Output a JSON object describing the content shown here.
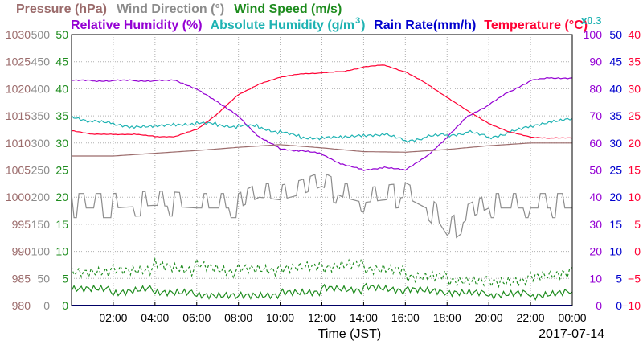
{
  "chart_data": {
    "type": "line",
    "date": "2017-07-14",
    "xlabel": "Time (JST)",
    "x_ticks": [
      "02:00",
      "04:00",
      "06:00",
      "08:00",
      "10:00",
      "12:00",
      "14:00",
      "16:00",
      "18:00",
      "20:00",
      "22:00",
      "00:00"
    ],
    "legend": {
      "row1": [
        {
          "text": "Pressure (hPa)",
          "color": "#9b6b6b"
        },
        {
          "text": "Wind Direction (°)",
          "color": "#8c8c8c"
        },
        {
          "text": "Wind Speed (m/s)",
          "color": "#1e8c1e"
        }
      ],
      "row2": [
        {
          "text": "Relative Humidity (%)",
          "color": "#9400d3"
        },
        {
          "text": "Absolute Humidity (g/m",
          "color": "#1fb3b3"
        },
        {
          "text": "Rain Rate(mm/h)",
          "color": "#0000cd"
        },
        {
          "text": "Temperature (°C)",
          "color": "#ff0033"
        }
      ],
      "abs_hum_superscript": "3",
      "abs_hum_close": ")",
      "abs_hum_scale": "x0.3"
    },
    "axes": {
      "pressure": {
        "color": "#9b6b6b",
        "ticks": [
          "1030",
          "1025",
          "1020",
          "1015",
          "1010",
          "1005",
          "1000",
          "995",
          "990",
          "985",
          "980"
        ]
      },
      "wind_dir": {
        "color": "#8c8c8c",
        "ticks": [
          "500",
          "450",
          "400",
          "350",
          "300",
          "250",
          "200",
          "150",
          "100",
          "50",
          "0"
        ]
      },
      "wind_speed": {
        "color": "#1e8c1e",
        "ticks": [
          "50",
          "45",
          "40",
          "35",
          "30",
          "25",
          "20",
          "15",
          "10",
          "5",
          "0"
        ]
      },
      "humidity": {
        "color": "#9400d3",
        "ticks": [
          "100",
          "90",
          "80",
          "70",
          "60",
          "50",
          "40",
          "30",
          "20",
          "10",
          "0"
        ]
      },
      "rain": {
        "color": "#0000cd",
        "ticks": [
          "50",
          "45",
          "40",
          "35",
          "30",
          "25",
          "20",
          "15",
          "10",
          "5",
          "0"
        ]
      },
      "temperature": {
        "color": "#ff0033",
        "ticks": [
          "40",
          "35",
          "30",
          "25",
          "20",
          "15",
          "10",
          "5",
          "0",
          "−5",
          "−10"
        ]
      }
    },
    "x_range_hours": [
      0,
      24
    ],
    "series": [
      {
        "name": "Temperature (°C)",
        "key": "temperature",
        "color": "#ff0033",
        "unit_range": [
          -10,
          40
        ],
        "x": [
          0,
          1,
          2,
          3,
          4,
          5,
          6,
          7,
          8,
          9,
          10,
          11,
          12,
          13,
          14,
          15,
          16,
          17,
          18,
          19,
          20,
          21,
          22,
          23,
          24
        ],
        "values": [
          22.3,
          21.6,
          21.6,
          21.6,
          21.2,
          21.2,
          22.5,
          25.4,
          28.9,
          30.9,
          32.1,
          32.8,
          32.9,
          33.2,
          34.0,
          34.4,
          33.1,
          31.0,
          28.4,
          25.9,
          23.6,
          22.0,
          21.1,
          20.9,
          20.9
        ]
      },
      {
        "name": "Relative Humidity (%)",
        "key": "humidity",
        "color": "#9400d3",
        "unit_range": [
          0,
          100
        ],
        "x": [
          0,
          1,
          2,
          3,
          4,
          5,
          6,
          7,
          8,
          9,
          10,
          11,
          12,
          13,
          14,
          15,
          16,
          17,
          18,
          19,
          20,
          21,
          22,
          23,
          24
        ],
        "values": [
          83,
          83,
          83,
          83,
          83,
          83,
          80,
          75,
          70,
          62,
          58,
          57,
          56,
          52,
          50,
          51,
          50,
          55,
          62,
          70,
          74,
          79,
          83,
          84,
          84
        ]
      },
      {
        "name": "Absolute Humidity (g/m3)",
        "key": "abs_humidity",
        "color": "#1fb3b3",
        "unit_range": [
          0,
          100
        ],
        "x": [
          0,
          1,
          2,
          3,
          4,
          5,
          6,
          7,
          8,
          9,
          10,
          11,
          12,
          13,
          14,
          15,
          16,
          17,
          18,
          19,
          20,
          21,
          22,
          23,
          24
        ],
        "values": [
          70,
          68,
          67,
          66,
          66,
          67,
          67,
          67,
          66,
          66,
          64,
          62,
          62,
          62,
          63,
          63,
          61,
          62,
          63,
          64,
          62,
          64,
          66,
          68,
          69
        ]
      },
      {
        "name": "Pressure (hPa)",
        "key": "pressure",
        "color": "#9b6b6b",
        "unit_range": [
          980,
          1030
        ],
        "x": [
          0,
          2,
          4,
          6,
          8,
          10,
          12,
          14,
          16,
          18,
          20,
          22,
          24
        ],
        "values": [
          1007.6,
          1007.6,
          1008.1,
          1008.6,
          1009.2,
          1009.7,
          1009.1,
          1008.4,
          1008.3,
          1008.8,
          1009.5,
          1010.0,
          1010.0
        ]
      },
      {
        "name": "Wind Direction (°)",
        "key": "wind_dir",
        "color": "#8c8c8c",
        "unit_range": [
          0,
          500
        ],
        "x": [
          0,
          2,
          4,
          6,
          8,
          9,
          10,
          11,
          12,
          13,
          14,
          15,
          16,
          17,
          17.5,
          18,
          19,
          20,
          22,
          24
        ],
        "values": [
          180,
          180,
          185,
          180,
          180,
          200,
          195,
          205,
          220,
          200,
          190,
          195,
          200,
          180,
          160,
          130,
          160,
          180,
          180,
          180
        ]
      },
      {
        "name": "Wind Speed (m/s)",
        "key": "wind_speed",
        "color": "#1e8c1e",
        "unit_range": [
          0,
          50
        ],
        "style": "dashed",
        "note": "gust",
        "x": [
          0,
          2,
          4,
          6,
          8,
          10,
          12,
          14,
          16,
          18,
          20,
          22,
          24
        ],
        "values": [
          7,
          7,
          7.5,
          7,
          6,
          6,
          6.5,
          7,
          6,
          5.5,
          5,
          5.5,
          7
        ]
      },
      {
        "name": "Wind Speed (m/s)",
        "key": "wind_speed_avg",
        "color": "#1e8c1e",
        "unit_range": [
          0,
          50
        ],
        "style": "solid",
        "note": "average",
        "x": [
          0,
          2,
          4,
          6,
          8,
          10,
          12,
          14,
          16,
          18,
          20,
          22,
          24
        ],
        "values": [
          3,
          2.5,
          3,
          2.5,
          2.3,
          2.5,
          3,
          3,
          2.5,
          2,
          1.8,
          2,
          2.5
        ]
      },
      {
        "name": "Rain Rate(mm/h)",
        "key": "rain",
        "color": "#0000cd",
        "unit_range": [
          0,
          50
        ],
        "x": [
          0,
          24
        ],
        "values": [
          0,
          0
        ]
      }
    ],
    "grid": true
  }
}
